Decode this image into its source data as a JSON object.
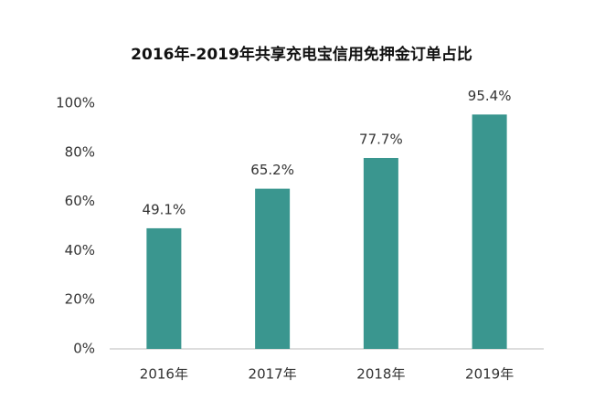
{
  "chart_data": {
    "type": "bar",
    "title": "2016年-2019年共享充电宝信用免押金订单占比",
    "categories": [
      "2016年",
      "2017年",
      "2018年",
      "2019年"
    ],
    "values": [
      49.1,
      65.2,
      77.7,
      95.4
    ],
    "value_labels": [
      "49.1%",
      "65.2%",
      "77.7%",
      "95.4%"
    ],
    "color": "#3a968f",
    "ylim": [
      0,
      100
    ],
    "yticks": [
      {
        "value": 0,
        "label": "0%"
      },
      {
        "value": 20,
        "label": "20%"
      },
      {
        "value": 40,
        "label": "40%"
      },
      {
        "value": 60,
        "label": "60%"
      },
      {
        "value": 80,
        "label": "80%"
      },
      {
        "value": 100,
        "label": "100%"
      }
    ],
    "grid": false
  }
}
